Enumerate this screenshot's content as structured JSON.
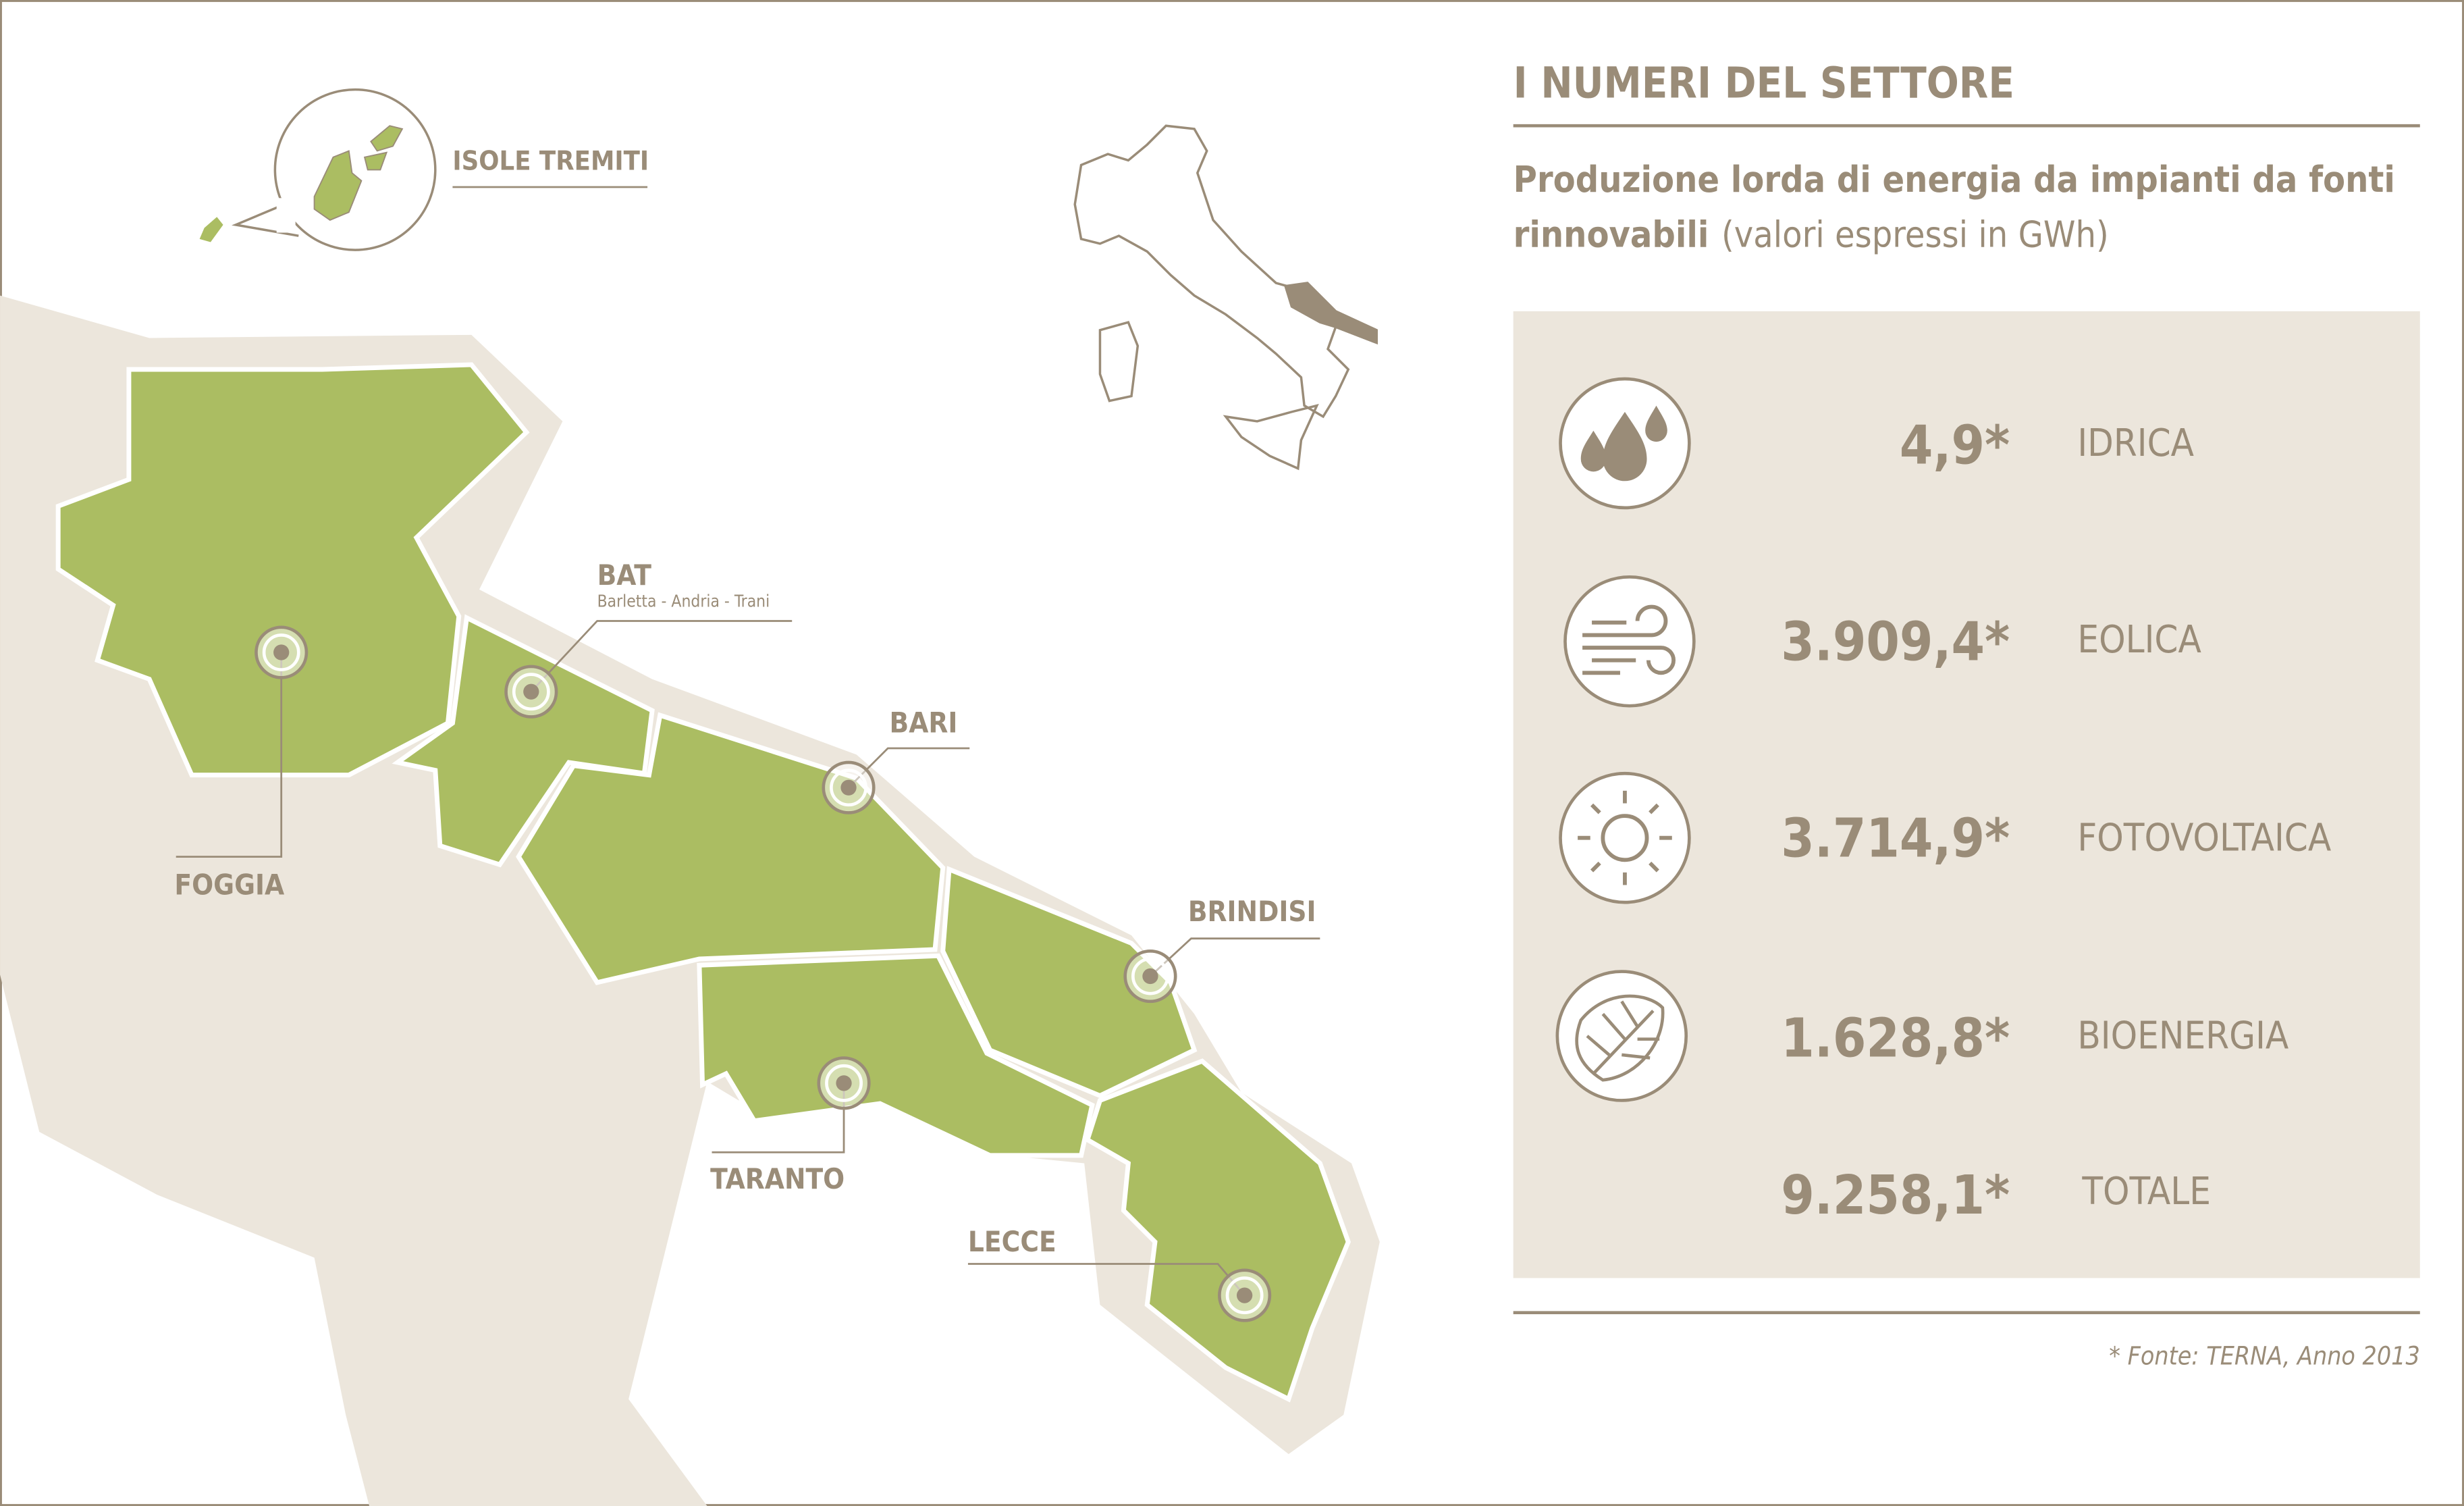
{
  "colors": {
    "text": "#9a8c78",
    "region": "#abbd62",
    "land": "#ece6dc",
    "panel": "#ece6dc"
  },
  "map": {
    "islands_label": "ISOLE TREMITI",
    "provinces": [
      {
        "name": "FOGGIA"
      },
      {
        "name": "BAT",
        "subtitle": "Barletta - Andria - Trani"
      },
      {
        "name": "BARI"
      },
      {
        "name": "BRINDISI"
      },
      {
        "name": "TARANTO"
      },
      {
        "name": "LECCE"
      }
    ]
  },
  "panel": {
    "title": "I NUMERI DEL SETTORE",
    "subtitle_bold_1": "Produzione lorda di energia da impianti da fonti",
    "subtitle_bold_2": "rinnovabili",
    "subtitle_light": "(valori espressi in GWh)",
    "rows": [
      {
        "icon": "water-drops-icon",
        "value": "4,9*",
        "label": "IDRICA"
      },
      {
        "icon": "wind-icon",
        "value": "3.909,4*",
        "label": "EOLICA"
      },
      {
        "icon": "sun-icon",
        "value": "3.714,9*",
        "label": "FOTOVOLTAICA"
      },
      {
        "icon": "leaf-icon",
        "value": "1.628,8*",
        "label": "BIOENERGIA"
      }
    ],
    "total": {
      "value": "9.258,1*",
      "label": "TOTALE"
    },
    "source": "* Fonte: TERNA, Anno 2013"
  }
}
